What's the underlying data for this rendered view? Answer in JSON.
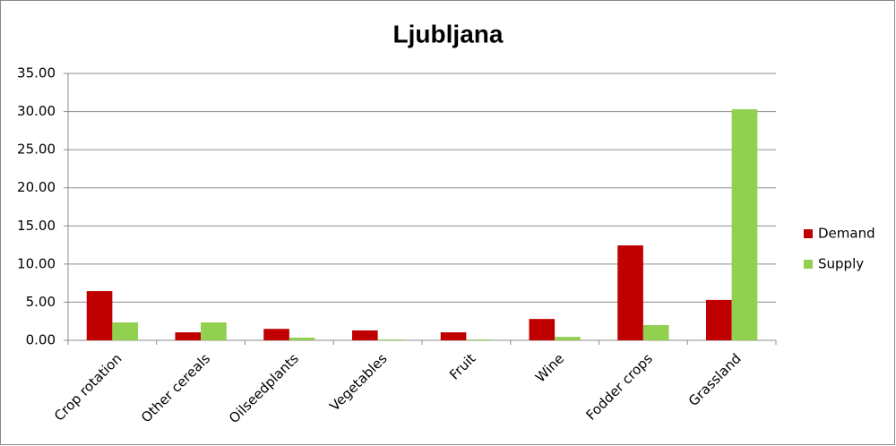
{
  "chart_data": {
    "type": "bar",
    "title": "Ljubljana",
    "categories": [
      "Crop rotation",
      "Other cereals",
      "Oilseedplants",
      "Vegetables",
      "Fruit",
      "Wine",
      "Fodder crops",
      "Grassland"
    ],
    "series": [
      {
        "name": "Demand",
        "color": "#c00000",
        "values": [
          6.45,
          1.05,
          1.5,
          1.3,
          1.05,
          2.8,
          12.45,
          5.3
        ]
      },
      {
        "name": "Supply",
        "color": "#92d050",
        "values": [
          2.35,
          2.35,
          0.35,
          0.1,
          0.1,
          0.45,
          2.0,
          30.3
        ]
      }
    ],
    "ylim": [
      0,
      35
    ],
    "yticks": [
      {
        "value": 0,
        "label": "0.00"
      },
      {
        "value": 5,
        "label": "5.00"
      },
      {
        "value": 10,
        "label": "10.00"
      },
      {
        "value": 15,
        "label": "15.00"
      },
      {
        "value": 20,
        "label": "20.00"
      },
      {
        "value": 25,
        "label": "25.00"
      },
      {
        "value": 30,
        "label": "30.00"
      },
      {
        "value": 35,
        "label": "35.00"
      }
    ],
    "grid": true,
    "legend": "right"
  }
}
